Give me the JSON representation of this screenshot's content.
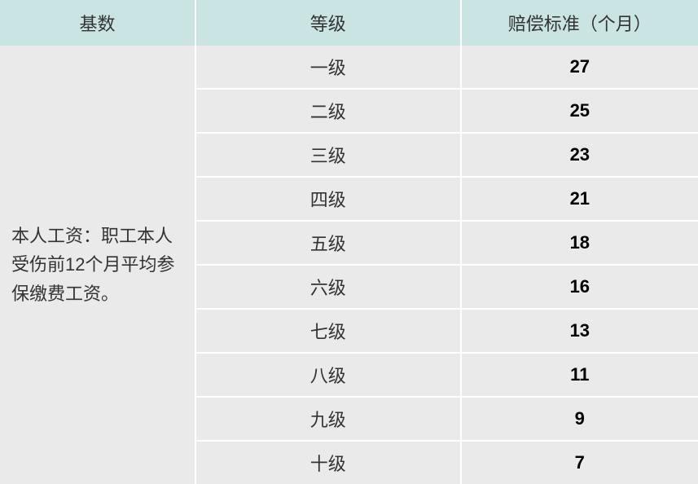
{
  "table": {
    "type": "table",
    "columns": [
      "基数",
      "等级",
      "赔偿标准（个月）"
    ],
    "column_widths_pct": [
      28,
      38,
      34
    ],
    "header_bg": "#cae4e4",
    "body_bg": "#eaeaea",
    "border_color": "#ffffff",
    "text_color": "#333333",
    "value_color": "#000000",
    "font_size": 22,
    "rowspan_text": "本人工资：职工本人受伤前12个月平均参保缴费工资。",
    "rows": [
      {
        "level": "一级",
        "months": "27"
      },
      {
        "level": "二级",
        "months": "25"
      },
      {
        "level": "三级",
        "months": "23"
      },
      {
        "level": "四级",
        "months": "21"
      },
      {
        "level": "五级",
        "months": "18"
      },
      {
        "level": "六级",
        "months": "16"
      },
      {
        "level": "七级",
        "months": "13"
      },
      {
        "level": "八级",
        "months": "11"
      },
      {
        "level": "九级",
        "months": "9"
      },
      {
        "level": "十级",
        "months": "7"
      }
    ]
  }
}
